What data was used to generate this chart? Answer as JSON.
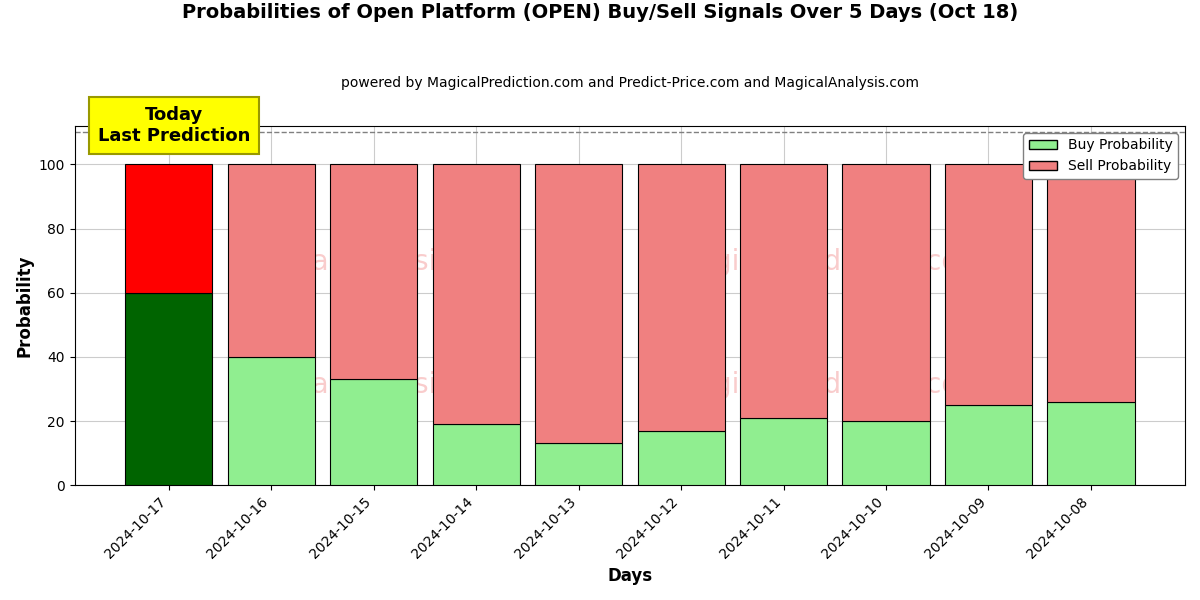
{
  "title": "Probabilities of Open Platform (OPEN) Buy/Sell Signals Over 5 Days (Oct 18)",
  "subtitle": "powered by MagicalPrediction.com and Predict-Price.com and MagicalAnalysis.com",
  "xlabel": "Days",
  "ylabel": "Probability",
  "dates": [
    "2024-10-17",
    "2024-10-16",
    "2024-10-15",
    "2024-10-14",
    "2024-10-13",
    "2024-10-12",
    "2024-10-11",
    "2024-10-10",
    "2024-10-09",
    "2024-10-08"
  ],
  "buy_values": [
    60,
    40,
    33,
    19,
    13,
    17,
    21,
    20,
    25,
    26
  ],
  "sell_values": [
    40,
    60,
    67,
    81,
    87,
    83,
    79,
    80,
    75,
    74
  ],
  "buy_colors": [
    "#006400",
    "#90EE90",
    "#90EE90",
    "#90EE90",
    "#90EE90",
    "#90EE90",
    "#90EE90",
    "#90EE90",
    "#90EE90",
    "#90EE90"
  ],
  "sell_colors": [
    "#FF0000",
    "#F08080",
    "#F08080",
    "#F08080",
    "#F08080",
    "#F08080",
    "#F08080",
    "#F08080",
    "#F08080",
    "#F08080"
  ],
  "today_box_color": "#FFFF00",
  "today_label": "Today\nLast Prediction",
  "bar_edge_color": "#000000",
  "ylim": [
    0,
    112
  ],
  "yticks": [
    0,
    20,
    40,
    60,
    80,
    100
  ],
  "dashed_line_y": 110,
  "watermark_color": "#F08080",
  "watermark_alpha": 0.4,
  "legend_buy_color": "#90EE90",
  "legend_sell_color": "#F08080",
  "grid_color": "#cccccc",
  "background_color": "#ffffff",
  "bar_width": 0.85
}
